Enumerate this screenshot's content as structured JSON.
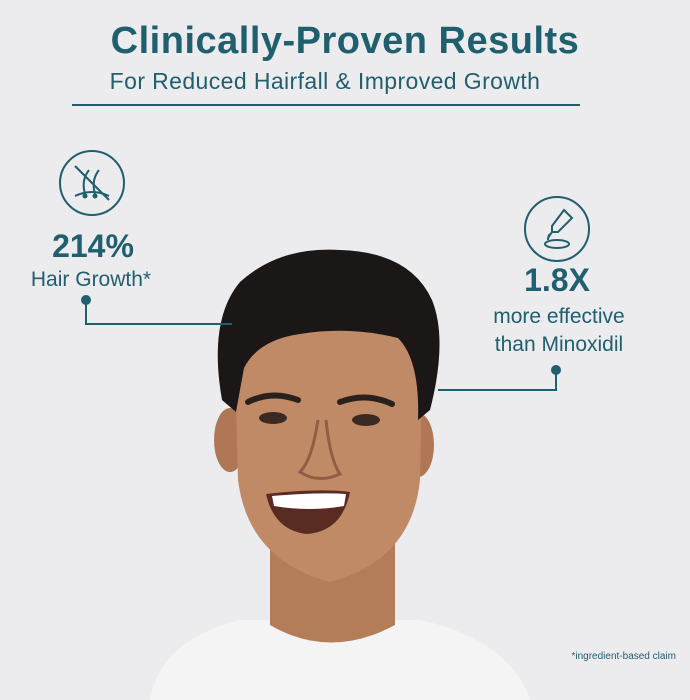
{
  "header": {
    "title": "Clinically-Proven Results",
    "subtitle": "For Reduced Hairfall & Improved Growth"
  },
  "stats": [
    {
      "icon": "hair-follicle-no-fall-icon",
      "value": "214%",
      "label": "Hair Growth*"
    },
    {
      "icon": "dropper-serum-icon",
      "value": "1.8X",
      "label_line1": "more effective",
      "label_line2": "than Minoxidil"
    }
  ],
  "footnote": "*ingredient-based claim",
  "colors": {
    "accent": "#1f5f6e",
    "background": "#ecebed"
  }
}
